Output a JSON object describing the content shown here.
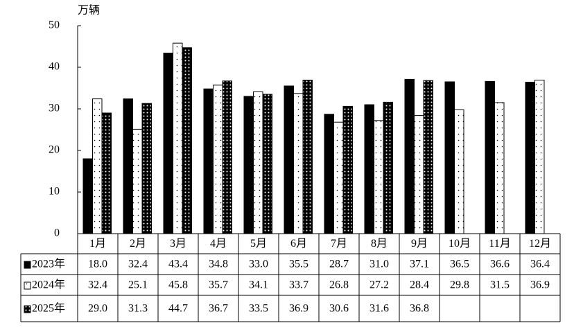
{
  "chart_data": {
    "type": "bar",
    "y_label": "万辆",
    "categories": [
      "1月",
      "2月",
      "3月",
      "4月",
      "5月",
      "6月",
      "7月",
      "8月",
      "9月",
      "10月",
      "11月",
      "12月"
    ],
    "series": [
      {
        "name": "2023年",
        "color": "#000000",
        "pattern": null,
        "values": [
          18.0,
          32.4,
          43.4,
          34.8,
          33.0,
          35.5,
          28.7,
          31.0,
          37.1,
          36.5,
          36.6,
          36.4
        ],
        "value_labels": [
          "18.0",
          "32.4",
          "43.4",
          "34.8",
          "33.0",
          "35.5",
          "28.7",
          "31.0",
          "37.1",
          "36.5",
          "36.6",
          "36.4"
        ]
      },
      {
        "name": "2024年",
        "color": "#ffffff",
        "pattern": "sparse-dots",
        "values": [
          32.4,
          25.1,
          45.8,
          35.7,
          34.1,
          33.7,
          26.8,
          27.2,
          28.4,
          29.8,
          31.5,
          36.9
        ],
        "value_labels": [
          "32.4",
          "25.1",
          "45.8",
          "35.7",
          "34.1",
          "33.7",
          "26.8",
          "27.2",
          "28.4",
          "29.8",
          "31.5",
          "36.9"
        ]
      },
      {
        "name": "2025年",
        "color": "#000000",
        "pattern": "dots",
        "values": [
          29.0,
          31.3,
          44.7,
          36.7,
          33.5,
          36.9,
          30.6,
          31.6,
          36.8,
          null,
          null,
          null
        ],
        "value_labels": [
          "29.0",
          "31.3",
          "44.7",
          "36.7",
          "33.5",
          "36.9",
          "30.6",
          "31.6",
          "36.8",
          null,
          null,
          null
        ]
      }
    ],
    "ylim": [
      0,
      50
    ],
    "yticks": [
      0,
      10,
      20,
      30,
      40,
      50
    ]
  }
}
